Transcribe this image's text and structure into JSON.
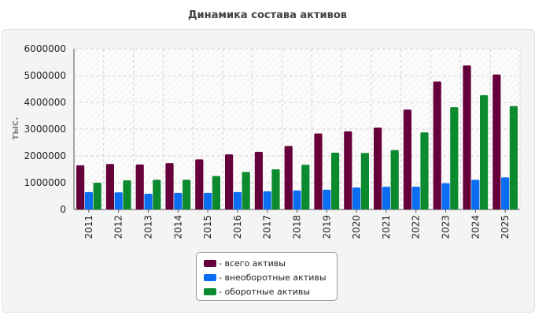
{
  "chart_data": {
    "type": "bar",
    "title": "Динамика состава активов",
    "ylabel": "тыс.",
    "xlabel": "",
    "categories": [
      "2011",
      "2012",
      "2013",
      "2014",
      "2015",
      "2016",
      "2017",
      "2018",
      "2019",
      "2020",
      "2021",
      "2022",
      "2023",
      "2024",
      "2025"
    ],
    "ylim": [
      0,
      6000000
    ],
    "yticks": [
      0,
      1000000,
      2000000,
      3000000,
      4000000,
      5000000,
      6000000
    ],
    "grid": true,
    "legend_position": "bottom-center",
    "series": [
      {
        "name": "- всего активы",
        "color": "#66003a",
        "values": [
          1650000,
          1700000,
          1680000,
          1730000,
          1870000,
          2060000,
          2150000,
          2370000,
          2840000,
          2920000,
          3060000,
          3730000,
          4780000,
          5380000,
          5040000
        ]
      },
      {
        "name": "- внеоборотные активы",
        "color": "#0b6ef2",
        "values": [
          650000,
          640000,
          590000,
          620000,
          620000,
          650000,
          680000,
          710000,
          740000,
          820000,
          850000,
          850000,
          980000,
          1110000,
          1200000
        ]
      },
      {
        "name": "- оборотные активы",
        "color": "#0b8a2e",
        "values": [
          1000000,
          1090000,
          1110000,
          1110000,
          1250000,
          1400000,
          1500000,
          1670000,
          2120000,
          2110000,
          2220000,
          2880000,
          3820000,
          4270000,
          3860000
        ]
      }
    ]
  }
}
